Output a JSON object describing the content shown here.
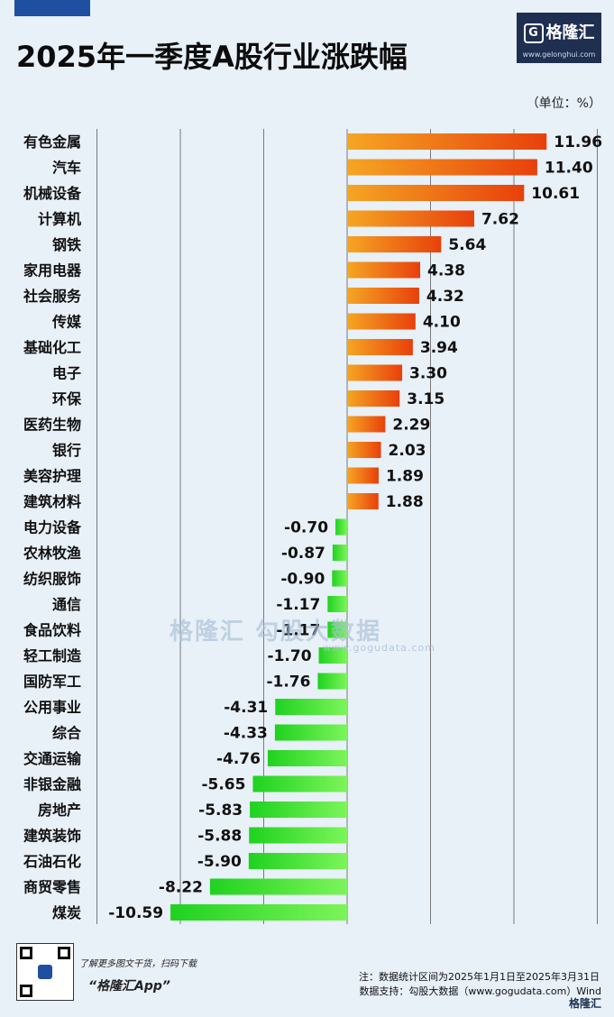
{
  "header": {
    "title": "2025年一季度A股行业涨跌幅",
    "unit": "（单位：%）",
    "logo_text": "格隆汇",
    "logo_url": "www.gelonghui.com"
  },
  "watermark": {
    "text": "格隆汇  勾股大数据",
    "url": "www.gogudata.com"
  },
  "footer": {
    "qr_tagline": "了解更多图文干货，扫码下载",
    "qr_app": "“格隆汇App”",
    "note": "注：数据统计区间为2025年1月1日至2025年3月31日",
    "source": "数据支持：勾股大数据（www.gogudata.com）Wind",
    "corner_logo": "格隆汇"
  },
  "colors": {
    "positive_start": "#f5a623",
    "positive_end": "#e8400c",
    "negative_start": "#1fd21f",
    "negative_end": "#7cf55a",
    "grid": "#7a7a7a"
  },
  "chart_data": {
    "type": "bar",
    "orientation": "horizontal",
    "categories": [
      "有色金属",
      "汽车",
      "机械设备",
      "计算机",
      "钢铁",
      "家用电器",
      "社会服务",
      "传媒",
      "基础化工",
      "电子",
      "环保",
      "医药生物",
      "银行",
      "美容护理",
      "建筑材料",
      "电力设备",
      "农林牧渔",
      "纺织服饰",
      "通信",
      "食品饮料",
      "轻工制造",
      "国防军工",
      "公用事业",
      "综合",
      "交通运输",
      "非银金融",
      "房地产",
      "建筑装饰",
      "石油石化",
      "商贸零售",
      "煤炭"
    ],
    "values": [
      11.96,
      11.4,
      10.61,
      7.62,
      5.64,
      4.38,
      4.32,
      4.1,
      3.94,
      3.3,
      3.15,
      2.29,
      2.03,
      1.89,
      1.88,
      -0.7,
      -0.87,
      -0.9,
      -1.17,
      -1.17,
      -1.7,
      -1.76,
      -4.31,
      -4.33,
      -4.76,
      -5.65,
      -5.83,
      -5.88,
      -5.9,
      -8.22,
      -10.59
    ],
    "value_labels": [
      "11.96",
      "11.40",
      "10.61",
      "7.62",
      "5.64",
      "4.38",
      "4.32",
      "4.10",
      "3.94",
      "3.30",
      "3.15",
      "2.29",
      "2.03",
      "1.89",
      "1.88",
      "-0.70",
      "-0.87",
      "-0.90",
      "-1.17",
      "-1.17",
      "-1.70",
      "-1.76",
      "-4.31",
      "-4.33",
      "-4.76",
      "-5.65",
      "-5.83",
      "-5.88",
      "-5.90",
      "-8.22",
      "-10.59"
    ],
    "xlim": [
      -15,
      15
    ],
    "gridline_values": [
      -15,
      -10,
      -5,
      0,
      5,
      10,
      15
    ],
    "grid": true,
    "legend": "none"
  }
}
